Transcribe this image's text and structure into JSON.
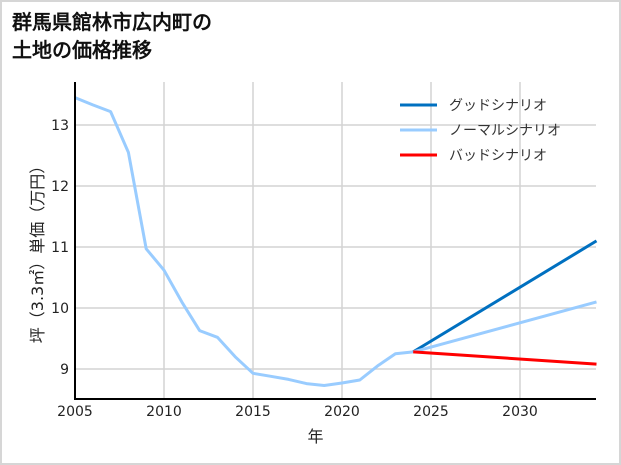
{
  "title": {
    "line1": "群馬県館林市広内町の",
    "line2": "土地の価格推移"
  },
  "chart_data": {
    "type": "line",
    "title": "群馬県館林市広内町の土地の価格推移",
    "xlabel": "年",
    "ylabel": "坪（3.3㎡）単価（万円）",
    "xlim": [
      2005,
      2034.3
    ],
    "ylim": [
      8.55,
      13.7
    ],
    "xticks": [
      2005,
      2010,
      2015,
      2020,
      2025,
      2030
    ],
    "yticks": [
      9,
      10,
      11,
      12,
      13
    ],
    "grid": true,
    "legend_position": "upper right",
    "series": [
      {
        "name": "ノーマルシナリオ(実績)",
        "color": "#99ccff",
        "x": [
          2005,
          2006,
          2007,
          2008,
          2009,
          2010,
          2011,
          2012,
          2013,
          2014,
          2015,
          2016,
          2017,
          2018,
          2019,
          2020,
          2021,
          2022,
          2023,
          2024
        ],
        "values": [
          13.45,
          13.33,
          13.22,
          12.55,
          10.97,
          10.62,
          10.1,
          9.63,
          9.52,
          9.2,
          8.93,
          8.88,
          8.83,
          8.76,
          8.73,
          8.77,
          8.82,
          9.05,
          9.25,
          9.28
        ]
      },
      {
        "name": "グッドシナリオ",
        "color": "#0070c0",
        "x": [
          2024,
          2034.3
        ],
        "values": [
          9.28,
          11.1
        ]
      },
      {
        "name": "ノーマルシナリオ",
        "color": "#99ccff",
        "x": [
          2024,
          2034.3
        ],
        "values": [
          9.28,
          10.1
        ]
      },
      {
        "name": "バッドシナリオ",
        "color": "#ff0000",
        "x": [
          2024,
          2034.3
        ],
        "values": [
          9.28,
          9.08
        ]
      }
    ]
  },
  "legend": [
    {
      "label": "グッドシナリオ",
      "color": "#0070c0"
    },
    {
      "label": "ノーマルシナリオ",
      "color": "#99ccff"
    },
    {
      "label": "バッドシナリオ",
      "color": "#ff0000"
    }
  ],
  "axis": {
    "xlabel": "年",
    "ylabel": "坪（3.3㎡）単価（万円）",
    "xticks": [
      "2005",
      "2010",
      "2015",
      "2020",
      "2025",
      "2030"
    ],
    "yticks": [
      "9",
      "10",
      "11",
      "12",
      "13"
    ]
  }
}
